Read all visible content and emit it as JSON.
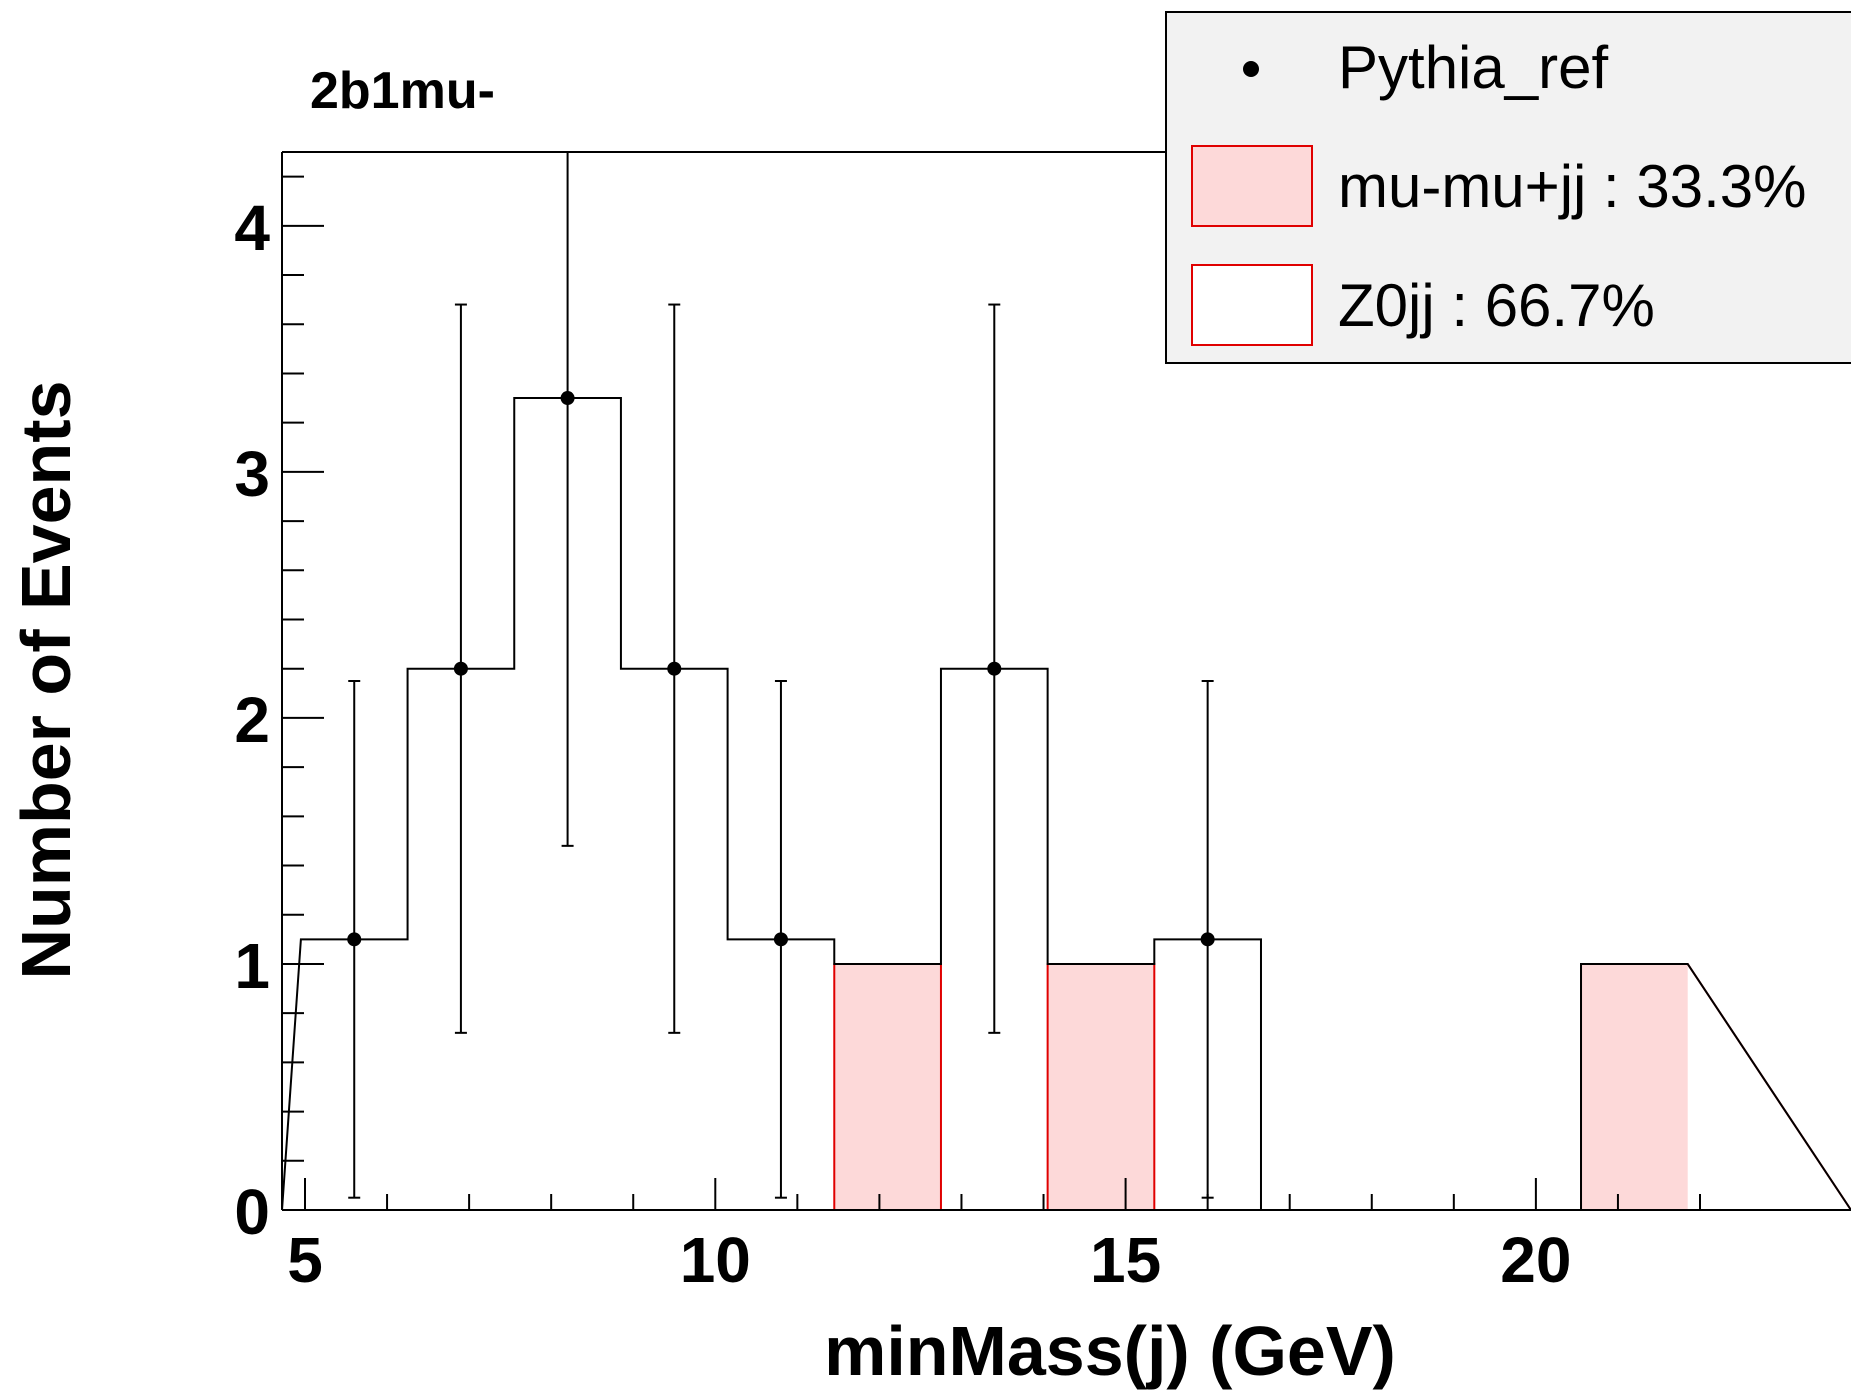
{
  "chart_data": {
    "type": "bar",
    "title": "2b1mu-",
    "xlabel": "minMass(j) (GeV)",
    "ylabel": "Number of Events",
    "xlim": [
      5,
      22
    ],
    "ylim": [
      0,
      4.3
    ],
    "xticks": [
      "5",
      "10",
      "15",
      "20"
    ],
    "yticks": [
      "0",
      "1",
      "2",
      "3",
      "4"
    ],
    "bin_edges": [
      4.95,
      6.25,
      7.55,
      8.85,
      10.15,
      11.45,
      12.75,
      14.05,
      15.35,
      16.65,
      17.95,
      19.25,
      20.55,
      21.85
    ],
    "series": [
      {
        "name": "mu-mu+jj : 33.3%",
        "kind": "filled-stack",
        "color": "#e00000",
        "fill": "#fdd9d9",
        "values": [
          0,
          0,
          0,
          0,
          0,
          1,
          0,
          1,
          0,
          0,
          0,
          0,
          1
        ]
      },
      {
        "name": "Z0jj : 66.7%",
        "kind": "stack-total",
        "color": "#000000",
        "values": [
          1.1,
          2.2,
          3.3,
          2.2,
          1.1,
          1.0,
          2.2,
          1.0,
          1.1,
          0,
          0,
          0,
          1.0
        ]
      },
      {
        "name": "Pythia_ref",
        "kind": "points-with-errors",
        "color": "#000000",
        "x": [
          5.6,
          6.9,
          8.2,
          9.5,
          10.8,
          13.4,
          16.0
        ],
        "y": [
          1.1,
          2.2,
          3.3,
          2.2,
          1.1,
          2.2,
          1.1
        ],
        "err_low": [
          1.05,
          1.48,
          1.82,
          1.48,
          1.05,
          1.48,
          1.05
        ],
        "err_high": [
          1.05,
          1.48,
          1.82,
          1.48,
          1.05,
          1.48,
          1.05
        ]
      }
    ],
    "legend": {
      "placement": "top-right",
      "entries": [
        "Pythia_ref",
        "mu-mu+jj : 33.3%",
        "Z0jj : 66.7%"
      ]
    },
    "grid": false
  }
}
